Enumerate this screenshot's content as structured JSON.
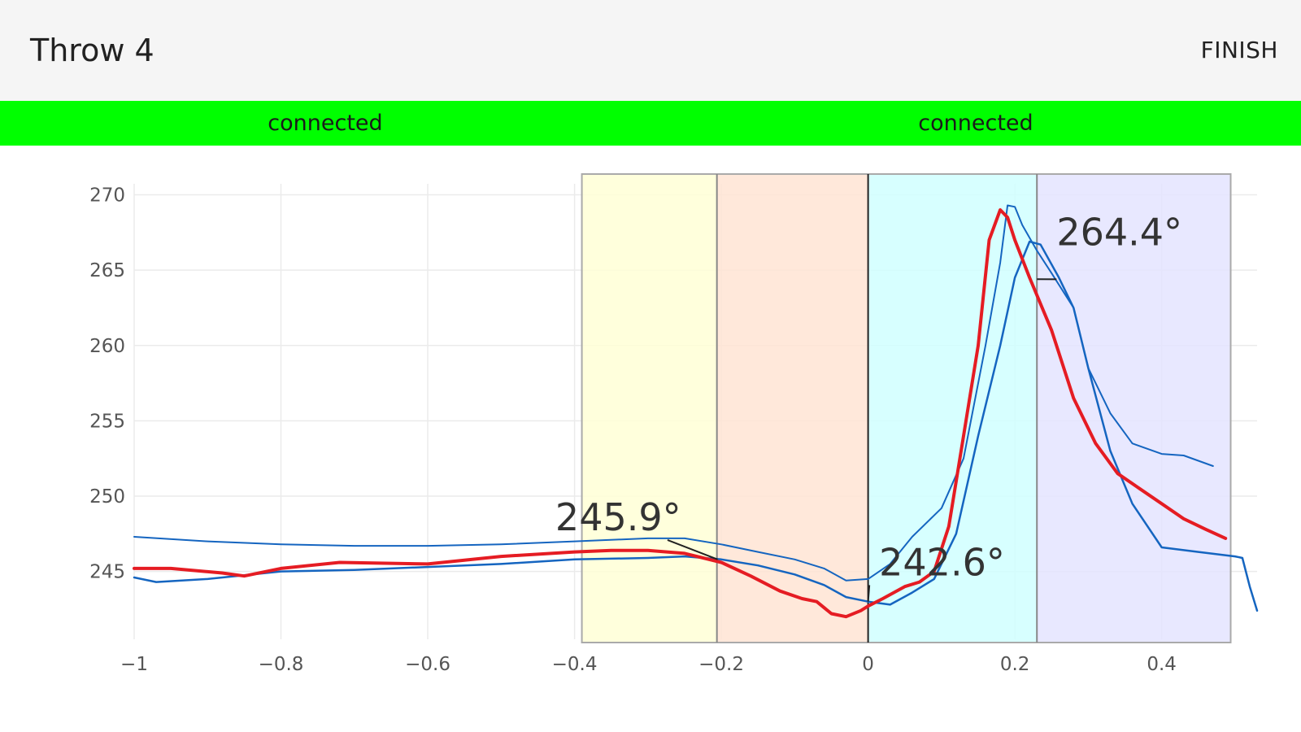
{
  "app": {
    "title": "Throw 4",
    "finish_label": "FINISH"
  },
  "status": [
    {
      "label": "connected",
      "color": "#00ff00"
    },
    {
      "label": "connected",
      "color": "#00ff00"
    }
  ],
  "chart_data": {
    "type": "line",
    "xlim": [
      -1,
      0.53
    ],
    "ylim": [
      240.5,
      271
    ],
    "x_ticks": [
      -1,
      -0.8,
      -0.6,
      -0.4,
      -0.2,
      0,
      0.2,
      0.4
    ],
    "x_tick_labels": [
      "−1",
      "−0.8",
      "−0.6",
      "−0.4",
      "−0.2",
      "0",
      "0.2",
      "0.4"
    ],
    "y_ticks": [
      245,
      250,
      255,
      260,
      265,
      270
    ],
    "y_tick_labels": [
      "245",
      "250",
      "255",
      "260",
      "265",
      "270"
    ],
    "grid": true,
    "phases": [
      {
        "x0": -0.39,
        "x1": -0.206,
        "color": "#ffffd6"
      },
      {
        "x0": -0.206,
        "x1": 0.0,
        "color": "#ffe4d4"
      },
      {
        "x0": 0.0,
        "x1": 0.23,
        "color": "#d0ffff"
      },
      {
        "x0": 0.23,
        "x1": 0.494,
        "color": "#e4e4ff"
      }
    ],
    "series": [
      {
        "color": "#1565c0",
        "width": 2,
        "points": [
          [
            -1,
            247.3
          ],
          [
            -0.9,
            247.0
          ],
          [
            -0.8,
            246.8
          ],
          [
            -0.7,
            246.7
          ],
          [
            -0.6,
            246.7
          ],
          [
            -0.5,
            246.8
          ],
          [
            -0.4,
            247.0
          ],
          [
            -0.3,
            247.2
          ],
          [
            -0.25,
            247.2
          ],
          [
            -0.2,
            246.8
          ],
          [
            -0.15,
            246.3
          ],
          [
            -0.1,
            245.8
          ],
          [
            -0.06,
            245.2
          ],
          [
            -0.03,
            244.4
          ],
          [
            0.0,
            244.5
          ],
          [
            0.03,
            245.5
          ],
          [
            0.06,
            247.3
          ],
          [
            0.1,
            249.2
          ],
          [
            0.13,
            252.5
          ],
          [
            0.16,
            260.0
          ],
          [
            0.18,
            265.5
          ],
          [
            0.19,
            269.3
          ],
          [
            0.2,
            269.2
          ],
          [
            0.21,
            268.0
          ],
          [
            0.23,
            266.3
          ],
          [
            0.25,
            264.8
          ],
          [
            0.28,
            262.5
          ],
          [
            0.3,
            258.5
          ],
          [
            0.33,
            255.5
          ],
          [
            0.36,
            253.5
          ],
          [
            0.4,
            252.8
          ],
          [
            0.43,
            252.7
          ],
          [
            0.47,
            252.0
          ]
        ]
      },
      {
        "color": "#1565c0",
        "width": 2.5,
        "points": [
          [
            -1,
            244.6
          ],
          [
            -0.97,
            244.3
          ],
          [
            -0.9,
            244.5
          ],
          [
            -0.8,
            245.0
          ],
          [
            -0.7,
            245.1
          ],
          [
            -0.6,
            245.3
          ],
          [
            -0.5,
            245.5
          ],
          [
            -0.4,
            245.8
          ],
          [
            -0.3,
            245.9
          ],
          [
            -0.25,
            246.0
          ],
          [
            -0.2,
            245.8
          ],
          [
            -0.15,
            245.4
          ],
          [
            -0.1,
            244.8
          ],
          [
            -0.06,
            244.1
          ],
          [
            -0.03,
            243.3
          ],
          [
            0.0,
            243.0
          ],
          [
            0.03,
            242.8
          ],
          [
            0.06,
            243.6
          ],
          [
            0.09,
            244.5
          ],
          [
            0.12,
            247.5
          ],
          [
            0.15,
            254.0
          ],
          [
            0.18,
            260.0
          ],
          [
            0.2,
            264.5
          ],
          [
            0.22,
            266.9
          ],
          [
            0.235,
            266.7
          ],
          [
            0.26,
            264.5
          ],
          [
            0.28,
            262.5
          ],
          [
            0.3,
            258.5
          ],
          [
            0.33,
            253.0
          ],
          [
            0.36,
            249.5
          ],
          [
            0.4,
            246.6
          ],
          [
            0.45,
            246.3
          ],
          [
            0.5,
            246.0
          ],
          [
            0.51,
            245.9
          ],
          [
            0.52,
            244.0
          ],
          [
            0.53,
            242.4
          ]
        ]
      },
      {
        "color": "#e51c23",
        "width": 4,
        "points": [
          [
            -1,
            245.2
          ],
          [
            -0.95,
            245.2
          ],
          [
            -0.88,
            244.9
          ],
          [
            -0.85,
            244.7
          ],
          [
            -0.8,
            245.2
          ],
          [
            -0.72,
            245.6
          ],
          [
            -0.6,
            245.5
          ],
          [
            -0.5,
            246.0
          ],
          [
            -0.4,
            246.3
          ],
          [
            -0.35,
            246.4
          ],
          [
            -0.3,
            246.4
          ],
          [
            -0.25,
            246.2
          ],
          [
            -0.2,
            245.6
          ],
          [
            -0.16,
            244.7
          ],
          [
            -0.12,
            243.7
          ],
          [
            -0.09,
            243.2
          ],
          [
            -0.07,
            243.0
          ],
          [
            -0.05,
            242.2
          ],
          [
            -0.03,
            242.0
          ],
          [
            -0.01,
            242.4
          ],
          [
            0.0,
            242.7
          ],
          [
            0.02,
            243.2
          ],
          [
            0.05,
            244.0
          ],
          [
            0.07,
            244.3
          ],
          [
            0.09,
            245.0
          ],
          [
            0.11,
            248.0
          ],
          [
            0.13,
            254.0
          ],
          [
            0.15,
            260.0
          ],
          [
            0.165,
            267.0
          ],
          [
            0.18,
            269.0
          ],
          [
            0.19,
            268.5
          ],
          [
            0.2,
            267.0
          ],
          [
            0.22,
            264.5
          ],
          [
            0.25,
            261.0
          ],
          [
            0.28,
            256.5
          ],
          [
            0.31,
            253.5
          ],
          [
            0.34,
            251.5
          ],
          [
            0.37,
            250.5
          ],
          [
            0.4,
            249.5
          ],
          [
            0.43,
            248.5
          ],
          [
            0.46,
            247.8
          ],
          [
            0.487,
            247.2
          ]
        ]
      }
    ],
    "annotations": [
      {
        "text": "245.9°",
        "x": -0.26,
        "y": 247.2,
        "ax": -0.205,
        "ay": 245.8
      },
      {
        "text": "242.6°",
        "x": 0.015,
        "y": 244.2,
        "ax": 0.0,
        "ay": 243.0
      },
      {
        "text": "264.4°",
        "x": 0.27,
        "y": 264.5,
        "ax": 0.23,
        "ay": 264.4
      }
    ]
  }
}
